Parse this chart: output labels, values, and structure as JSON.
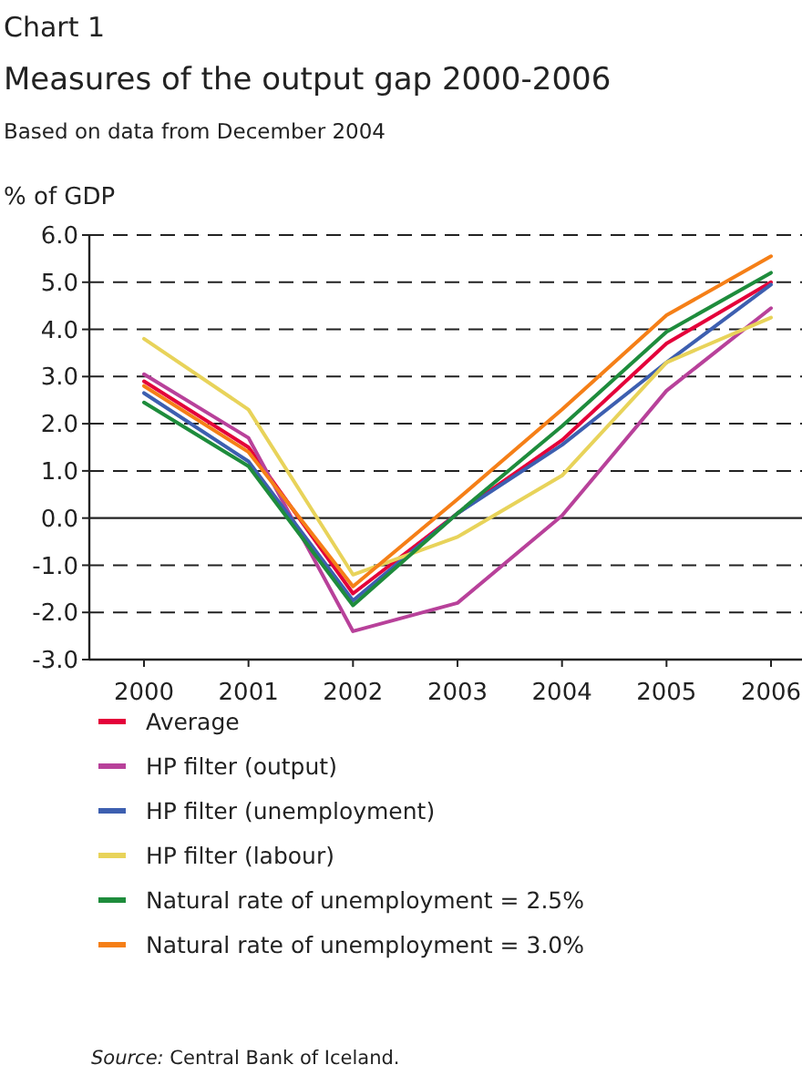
{
  "chart_data": {
    "type": "line",
    "title": "Chart 1",
    "subtitle": "Measures of the output gap 2000-2006",
    "annotations": [
      "Based on data from December 2004",
      "Source: Central Bank of Iceland."
    ],
    "ylabel": "% of GDP",
    "categories": [
      "2000",
      "2001",
      "2002",
      "2003",
      "2004",
      "2005",
      "2006"
    ],
    "ylim": [
      -3,
      6
    ],
    "yticks": [
      {
        "value": -3,
        "label": "-3.0"
      },
      {
        "value": -2,
        "label": "-2.0"
      },
      {
        "value": -1,
        "label": "-1.0"
      },
      {
        "value": 0,
        "label": "0.0"
      },
      {
        "value": 1,
        "label": "1.0"
      },
      {
        "value": 2,
        "label": "2.0"
      },
      {
        "value": 3,
        "label": "3.0"
      },
      {
        "value": 4,
        "label": "4.0"
      },
      {
        "value": 5,
        "label": "5.0"
      },
      {
        "value": 6,
        "label": "6.0"
      }
    ],
    "grid": "y",
    "legend": "bottom",
    "line_style": "solid",
    "series": [
      {
        "name": "Average",
        "color": "#e4003a",
        "values": [
          2.9,
          1.5,
          -1.6,
          0.1,
          1.65,
          3.7,
          5.0
        ]
      },
      {
        "name": "HP filter (output)",
        "color": "#b8419a",
        "values": [
          3.05,
          1.7,
          -2.4,
          -1.8,
          0.05,
          2.7,
          4.45
        ]
      },
      {
        "name": "HP filter (unemployment)",
        "color": "#3d5fb0",
        "values": [
          2.65,
          1.2,
          -1.75,
          0.1,
          1.55,
          3.3,
          4.95
        ]
      },
      {
        "name": "HP filter (labour)",
        "color": "#e8d35a",
        "values": [
          3.8,
          2.3,
          -1.2,
          -0.4,
          0.9,
          3.3,
          4.25
        ]
      },
      {
        "name": "Natural rate of unemployment = 2.5%",
        "color": "#1e8c3c",
        "values": [
          2.45,
          1.1,
          -1.85,
          0.1,
          1.95,
          3.95,
          5.2
        ]
      },
      {
        "name": "Natural rate of unemployment = 3.0%",
        "color": "#f57f17",
        "values": [
          2.8,
          1.4,
          -1.45,
          0.4,
          2.3,
          4.3,
          5.55
        ]
      }
    ]
  }
}
